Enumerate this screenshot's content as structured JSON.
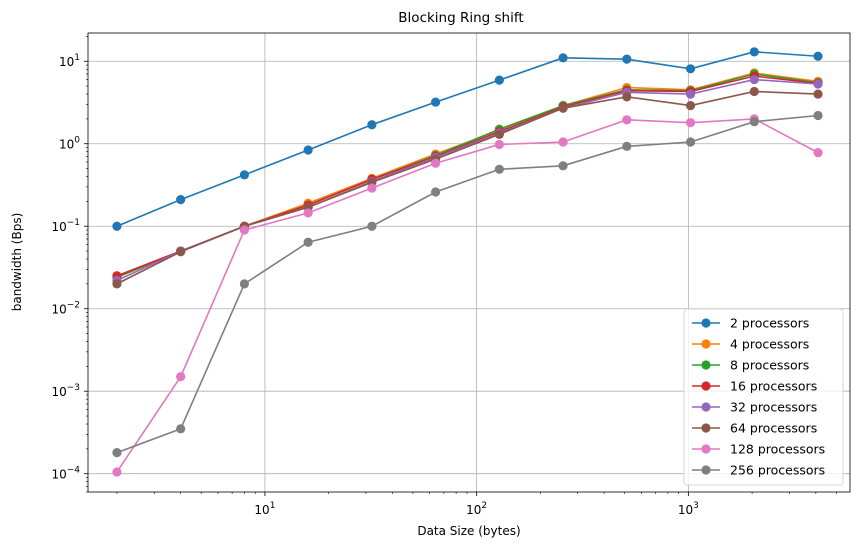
{
  "chart_data": {
    "type": "line",
    "title": "Blocking Ring shift",
    "xlabel": "Data Size (bytes)",
    "ylabel": "bandwidth (Bps)",
    "xscale": "log",
    "yscale": "log",
    "xlim": [
      1.46,
      5800
    ],
    "ylim": [
      6e-05,
      22
    ],
    "grid": true,
    "legend_position": "lower right",
    "x_ticks": [
      {
        "value": 10,
        "base": "10",
        "exp": "1"
      },
      {
        "value": 100,
        "base": "10",
        "exp": "2"
      },
      {
        "value": 1000,
        "base": "10",
        "exp": "3"
      }
    ],
    "y_ticks": [
      {
        "value": 0.0001,
        "base": "10",
        "exp": "−4"
      },
      {
        "value": 0.001,
        "base": "10",
        "exp": "−3"
      },
      {
        "value": 0.01,
        "base": "10",
        "exp": "−2"
      },
      {
        "value": 0.1,
        "base": "10",
        "exp": "−1"
      },
      {
        "value": 1,
        "base": "10",
        "exp": "0"
      },
      {
        "value": 10,
        "base": "10",
        "exp": "1"
      }
    ],
    "x": [
      2,
      4,
      8,
      16,
      32,
      64,
      128,
      256,
      512,
      1024,
      2048,
      4096
    ],
    "series": [
      {
        "name": "2 processors",
        "color": "#1f77b4",
        "values": [
          0.1,
          0.21,
          0.42,
          0.84,
          1.7,
          3.2,
          5.9,
          11.0,
          10.6,
          8.1,
          13.0,
          11.5
        ]
      },
      {
        "name": "4 processors",
        "color": "#ff7f0e",
        "values": [
          0.025,
          0.05,
          0.1,
          0.19,
          0.38,
          0.75,
          1.45,
          2.9,
          4.8,
          4.5,
          7.2,
          5.7
        ]
      },
      {
        "name": "8 processors",
        "color": "#2ca02c",
        "values": [
          0.024,
          0.05,
          0.1,
          0.18,
          0.37,
          0.72,
          1.5,
          2.9,
          4.5,
          4.4,
          7.0,
          5.5
        ]
      },
      {
        "name": "16 processors",
        "color": "#d62728",
        "values": [
          0.025,
          0.05,
          0.1,
          0.18,
          0.37,
          0.7,
          1.4,
          2.8,
          4.4,
          4.3,
          6.6,
          5.4
        ]
      },
      {
        "name": "32 processors",
        "color": "#9467bd",
        "values": [
          0.022,
          0.05,
          0.1,
          0.17,
          0.35,
          0.68,
          1.35,
          2.7,
          4.2,
          4.0,
          6.0,
          5.3
        ]
      },
      {
        "name": "64 processors",
        "color": "#8c564b",
        "values": [
          0.02,
          0.049,
          0.1,
          0.17,
          0.34,
          0.65,
          1.3,
          2.7,
          3.7,
          2.9,
          4.3,
          4.0
        ]
      },
      {
        "name": "128 processors",
        "color": "#e377c2",
        "values": [
          0.000105,
          0.0015,
          0.09,
          0.145,
          0.29,
          0.58,
          0.98,
          1.05,
          1.95,
          1.8,
          2.0,
          0.78
        ]
      },
      {
        "name": "256 processors",
        "color": "#7f7f7f",
        "values": [
          0.00018,
          0.00035,
          0.02,
          0.064,
          0.1,
          0.26,
          0.49,
          0.54,
          0.93,
          1.05,
          1.85,
          2.2
        ]
      }
    ]
  }
}
